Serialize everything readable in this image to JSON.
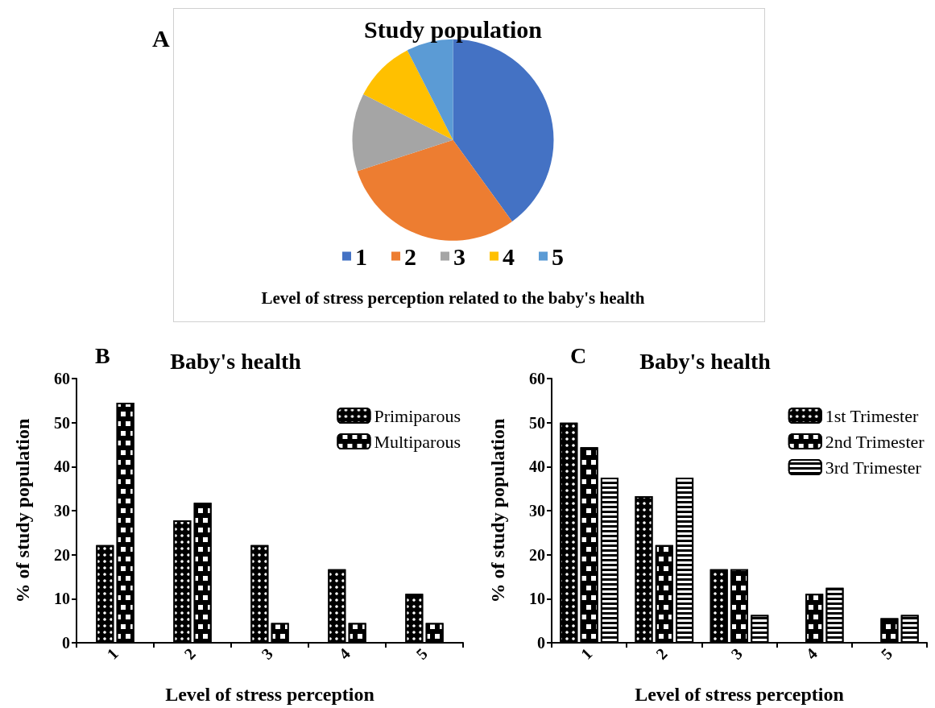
{
  "chart_data": [
    {
      "type": "pie",
      "title": "Study population",
      "categories": [
        "1",
        "2",
        "3",
        "4",
        "5"
      ],
      "values": [
        40,
        30,
        12.5,
        10,
        7.5
      ],
      "colors": [
        "#4472c4",
        "#ed7d31",
        "#a5a5a5",
        "#ffc000",
        "#5b9bd5"
      ],
      "legend": "bottom",
      "annotations": [
        "A",
        "Level of stress perception related to the baby's health"
      ]
    },
    {
      "type": "bar",
      "title": "Baby's health",
      "annotations": [
        "B"
      ],
      "categories": [
        "1",
        "2",
        "3",
        "4",
        "5"
      ],
      "xlabel": "Level of stress perception",
      "ylabel": "% of study population",
      "ylim": [
        0,
        60
      ],
      "yticks": [
        0,
        10,
        20,
        30,
        40,
        50,
        60
      ],
      "legend": "top right",
      "series": [
        {
          "name": "Primiparous",
          "color": "#000000",
          "values": [
            22.2,
            27.8,
            22.2,
            16.7,
            11.1
          ]
        },
        {
          "name": "Multiparous",
          "color": "#000000",
          "values": [
            54.5,
            31.8,
            4.5,
            4.5,
            4.5
          ]
        }
      ]
    },
    {
      "type": "bar",
      "title": "Baby's health",
      "annotations": [
        "C"
      ],
      "categories": [
        "1",
        "2",
        "3",
        "4",
        "5"
      ],
      "xlabel": "Level of stress perception",
      "ylabel": "% of study population",
      "ylim": [
        0,
        60
      ],
      "yticks": [
        0,
        10,
        20,
        30,
        40,
        50,
        60
      ],
      "legend": "top right",
      "series": [
        {
          "name": "1st Trimester",
          "color": "#000000",
          "values": [
            50,
            33.3,
            16.7,
            0,
            0
          ]
        },
        {
          "name": "2nd Trimester",
          "color": "#000000",
          "values": [
            44.4,
            22.2,
            16.7,
            11.1,
            5.6
          ]
        },
        {
          "name": "3rd Trimester",
          "color": "#000000",
          "values": [
            37.5,
            37.5,
            6.3,
            12.5,
            6.3
          ]
        }
      ]
    }
  ]
}
